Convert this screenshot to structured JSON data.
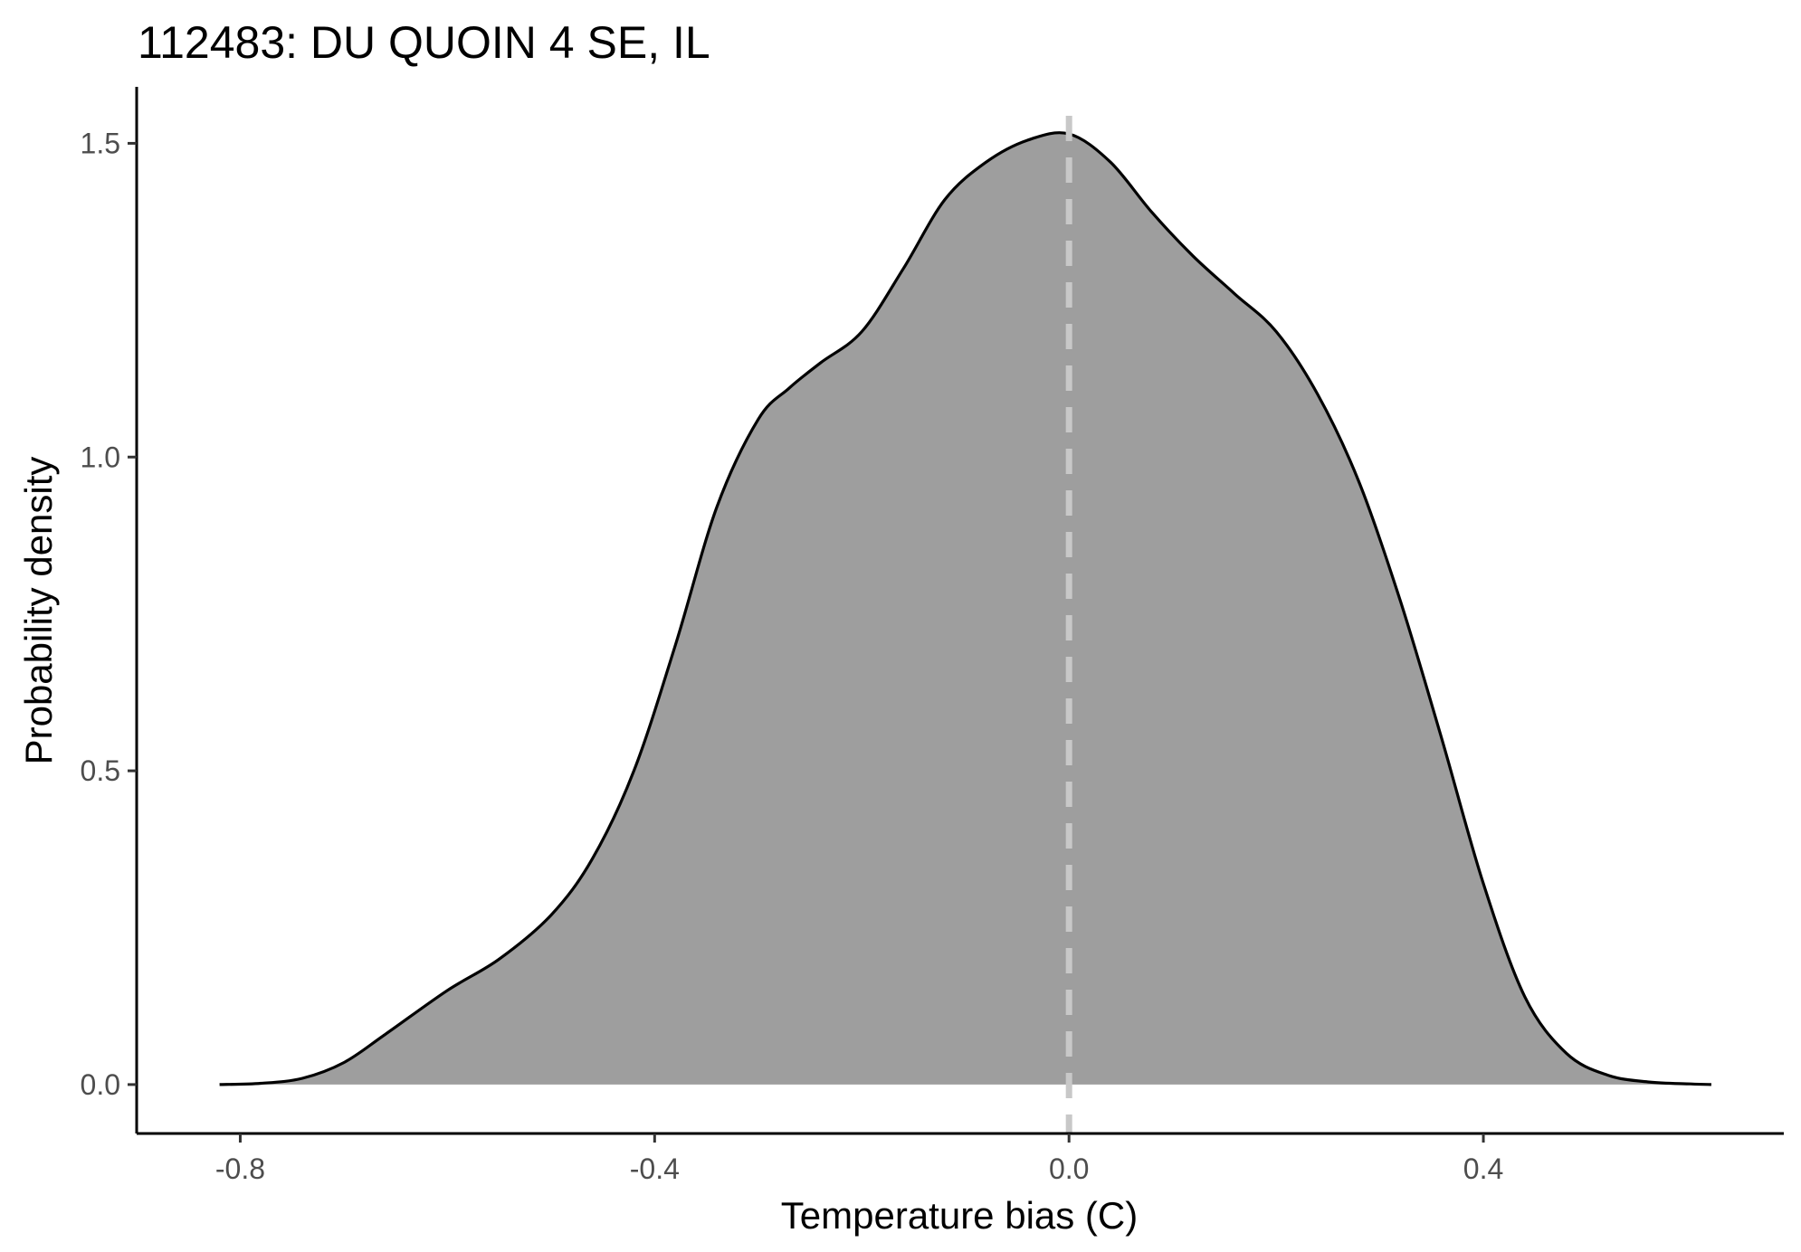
{
  "chart_data": {
    "type": "area",
    "title": "112483: DU QUOIN 4 SE, IL",
    "xlabel": "Temperature bias (C)",
    "ylabel": "Probability density",
    "xlim": [
      -0.9,
      0.69
    ],
    "ylim": [
      -0.078,
      1.59
    ],
    "xticks": [
      -0.8,
      -0.4,
      0.0,
      0.4
    ],
    "xtick_labels": [
      "-0.8",
      "-0.4",
      "0.0",
      "0.4"
    ],
    "yticks": [
      0.0,
      0.5,
      1.0,
      1.5
    ],
    "ytick_labels": [
      "0.0",
      "0.5",
      "1.0",
      "1.5"
    ],
    "grid": false,
    "reference_line": {
      "x": 0.0,
      "style": "dashed",
      "color": "#c8c8c8"
    },
    "colors": {
      "fill": "#9e9e9e",
      "outline": "#000000",
      "axis": "#000000",
      "tick_label": "#4d4d4d"
    },
    "series": [
      {
        "x": [
          -0.82,
          -0.78,
          -0.74,
          -0.7,
          -0.66,
          -0.6,
          -0.55,
          -0.5,
          -0.46,
          -0.42,
          -0.38,
          -0.34,
          -0.3,
          -0.27,
          -0.24,
          -0.2,
          -0.16,
          -0.12,
          -0.08,
          -0.04,
          0.0,
          0.04,
          0.08,
          0.12,
          0.16,
          0.2,
          0.24,
          0.28,
          0.32,
          0.36,
          0.4,
          0.44,
          0.48,
          0.52,
          0.56,
          0.6,
          0.62
        ],
        "y": [
          0.0,
          0.002,
          0.01,
          0.035,
          0.08,
          0.15,
          0.2,
          0.27,
          0.36,
          0.5,
          0.7,
          0.92,
          1.06,
          1.11,
          1.15,
          1.2,
          1.3,
          1.41,
          1.47,
          1.505,
          1.515,
          1.47,
          1.39,
          1.32,
          1.26,
          1.2,
          1.1,
          0.96,
          0.77,
          0.55,
          0.32,
          0.14,
          0.05,
          0.015,
          0.004,
          0.001,
          0.0
        ]
      }
    ]
  }
}
